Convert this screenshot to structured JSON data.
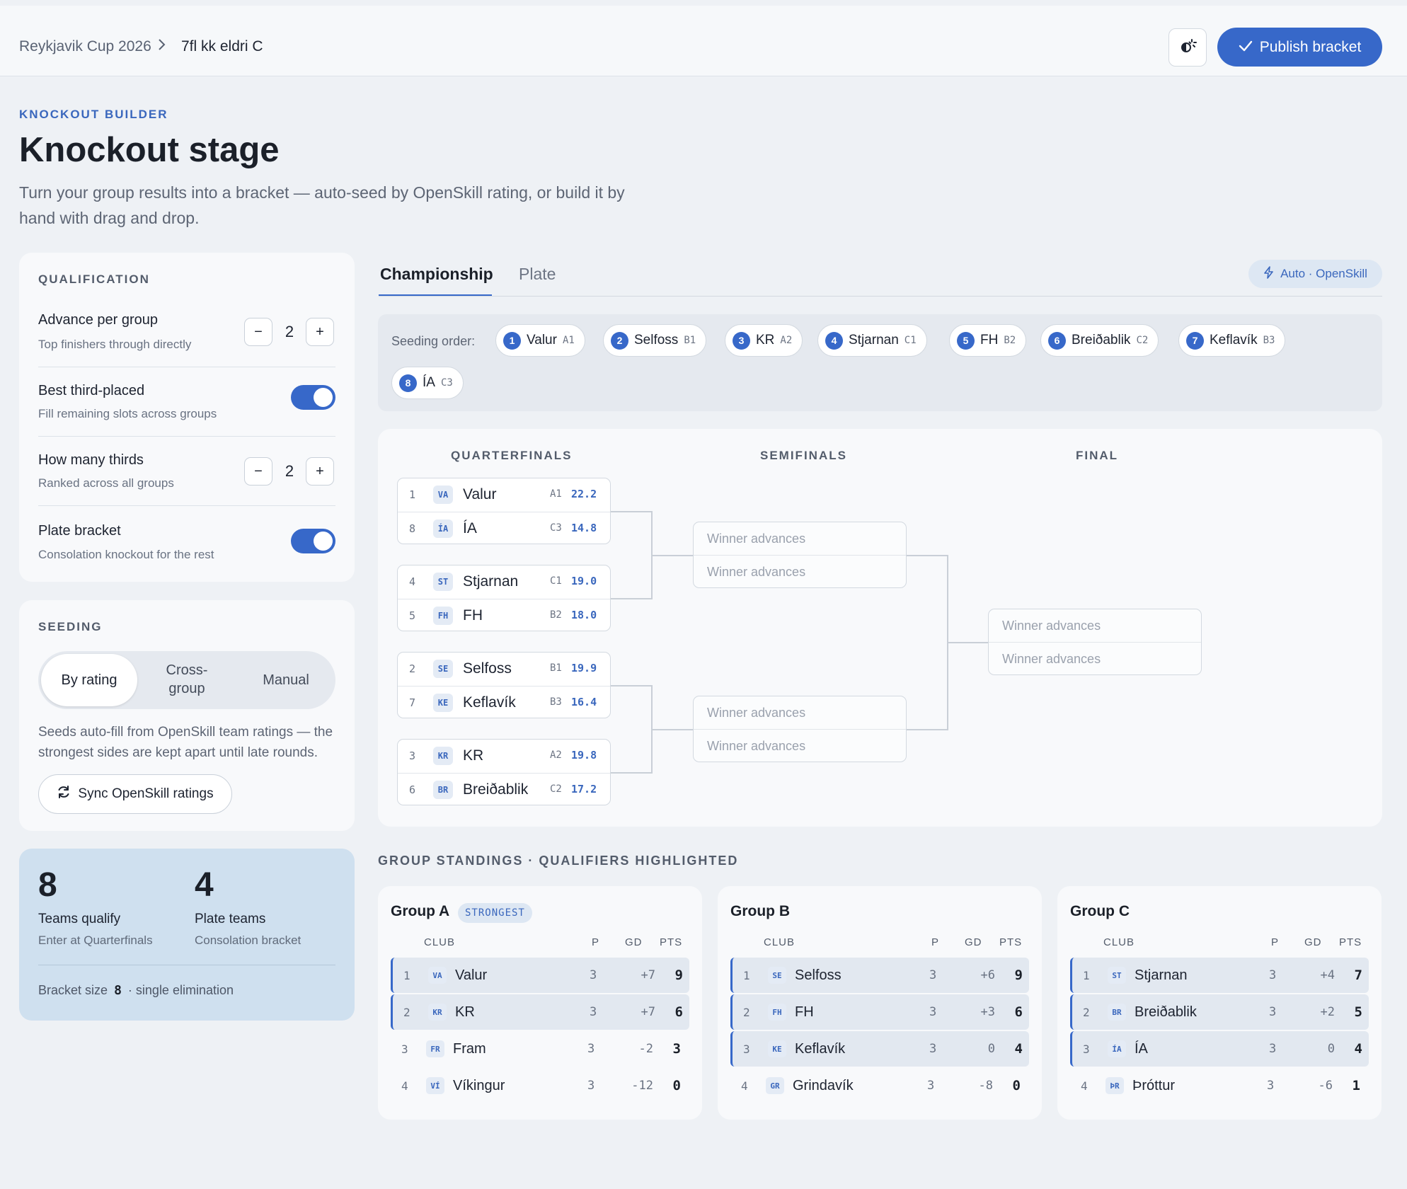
{
  "header": {
    "breadcrumb": [
      "Reykjavik Cup 2026",
      "7fl kk eldri C"
    ],
    "publish_label": "Publish bracket"
  },
  "page": {
    "eyebrow": "KNOCKOUT BUILDER",
    "title": "Knockout stage",
    "lede": "Turn your group results into a bracket — auto-seed by OpenSkill rating, or build it by hand with drag and drop."
  },
  "qualification": {
    "title": "QUALIFICATION",
    "advance": {
      "label": "Advance per group",
      "sub": "Top finishers through directly",
      "value": "2"
    },
    "best_third": {
      "label": "Best third-placed",
      "sub": "Fill remaining slots across groups",
      "on": true
    },
    "how_many": {
      "label": "How many thirds",
      "sub": "Ranked across all groups",
      "value": "2"
    },
    "plate": {
      "label": "Plate bracket",
      "sub": "Consolation knockout for the rest",
      "on": true
    }
  },
  "seeding": {
    "title": "SEEDING",
    "options": [
      "By rating",
      "Cross-\ngroup",
      "Manual"
    ],
    "selected": "By rating",
    "description": "Seeds auto-fill from OpenSkill team ratings — the strongest sides are kept apart until late rounds.",
    "sync_label": "Sync OpenSkill ratings"
  },
  "summary": {
    "qualify_count": "8",
    "qualify_label": "Teams qualify",
    "qualify_sub": "Enter at Quarterfinals",
    "plate_count": "4",
    "plate_label": "Plate teams",
    "plate_sub": "Consolation bracket",
    "bracket_size_label": "Bracket size",
    "bracket_size": "8",
    "bracket_type": "· single elimination"
  },
  "tabs": {
    "championship": "Championship",
    "plate": "Plate",
    "auto": "Auto · OpenSkill"
  },
  "seeding_order": {
    "label": "Seeding order:",
    "chips": [
      {
        "n": "1",
        "name": "Valur",
        "code": "A1"
      },
      {
        "n": "2",
        "name": "Selfoss",
        "code": "B1"
      },
      {
        "n": "3",
        "name": "KR",
        "code": "A2"
      },
      {
        "n": "4",
        "name": "Stjarnan",
        "code": "C1"
      },
      {
        "n": "5",
        "name": "FH",
        "code": "B2"
      },
      {
        "n": "6",
        "name": "Breiðablik",
        "code": "C2"
      },
      {
        "n": "7",
        "name": "Keflavík",
        "code": "B3"
      },
      {
        "n": "8",
        "name": "ÍA",
        "code": "C3"
      }
    ]
  },
  "bracket": {
    "rounds": [
      "QUARTERFINALS",
      "SEMIFINALS",
      "FINAL"
    ],
    "placeholder": "Winner advances",
    "quarterfinals": [
      [
        {
          "seed": "1",
          "abbr": "VA",
          "name": "Valur",
          "group": "A1",
          "rating": "22.2"
        },
        {
          "seed": "8",
          "abbr": "ÍA",
          "name": "ÍA",
          "group": "C3",
          "rating": "14.8"
        }
      ],
      [
        {
          "seed": "4",
          "abbr": "ST",
          "name": "Stjarnan",
          "group": "C1",
          "rating": "19.0"
        },
        {
          "seed": "5",
          "abbr": "FH",
          "name": "FH",
          "group": "B2",
          "rating": "18.0"
        }
      ],
      [
        {
          "seed": "2",
          "abbr": "SE",
          "name": "Selfoss",
          "group": "B1",
          "rating": "19.9"
        },
        {
          "seed": "7",
          "abbr": "KE",
          "name": "Keflavík",
          "group": "B3",
          "rating": "16.4"
        }
      ],
      [
        {
          "seed": "3",
          "abbr": "KR",
          "name": "KR",
          "group": "A2",
          "rating": "19.8"
        },
        {
          "seed": "6",
          "abbr": "BR",
          "name": "Breiðablik",
          "group": "C2",
          "rating": "17.2"
        }
      ]
    ]
  },
  "standings": {
    "title": "GROUP STANDINGS · QUALIFIERS HIGHLIGHTED",
    "columns": {
      "club": "CLUB",
      "p": "P",
      "gd": "GD",
      "pts": "PTS"
    },
    "groups": [
      {
        "name": "Group A",
        "badge": "STRONGEST",
        "rows": [
          {
            "pos": "1",
            "abbr": "VA",
            "club": "Valur",
            "p": "3",
            "gd": "+7",
            "pts": "9",
            "q": true
          },
          {
            "pos": "2",
            "abbr": "KR",
            "club": "KR",
            "p": "3",
            "gd": "+7",
            "pts": "6",
            "q": true
          },
          {
            "pos": "3",
            "abbr": "FR",
            "club": "Fram",
            "p": "3",
            "gd": "-2",
            "pts": "3",
            "q": false
          },
          {
            "pos": "4",
            "abbr": "VÍ",
            "club": "Víkingur",
            "p": "3",
            "gd": "-12",
            "pts": "0",
            "q": false
          }
        ]
      },
      {
        "name": "Group B",
        "badge": "",
        "rows": [
          {
            "pos": "1",
            "abbr": "SE",
            "club": "Selfoss",
            "p": "3",
            "gd": "+6",
            "pts": "9",
            "q": true
          },
          {
            "pos": "2",
            "abbr": "FH",
            "club": "FH",
            "p": "3",
            "gd": "+3",
            "pts": "6",
            "q": true
          },
          {
            "pos": "3",
            "abbr": "KE",
            "club": "Keflavík",
            "p": "3",
            "gd": "0",
            "pts": "4",
            "q": true
          },
          {
            "pos": "4",
            "abbr": "GR",
            "club": "Grindavík",
            "p": "3",
            "gd": "-8",
            "pts": "0",
            "q": false
          }
        ]
      },
      {
        "name": "Group C",
        "badge": "",
        "rows": [
          {
            "pos": "1",
            "abbr": "ST",
            "club": "Stjarnan",
            "p": "3",
            "gd": "+4",
            "pts": "7",
            "q": true
          },
          {
            "pos": "2",
            "abbr": "BR",
            "club": "Breiðablik",
            "p": "3",
            "gd": "+2",
            "pts": "5",
            "q": true
          },
          {
            "pos": "3",
            "abbr": "ÍA",
            "club": "ÍA",
            "p": "3",
            "gd": "0",
            "pts": "4",
            "q": true
          },
          {
            "pos": "4",
            "abbr": "ÞR",
            "club": "Þróttur",
            "p": "3",
            "gd": "-6",
            "pts": "1",
            "q": false
          }
        ]
      }
    ]
  }
}
